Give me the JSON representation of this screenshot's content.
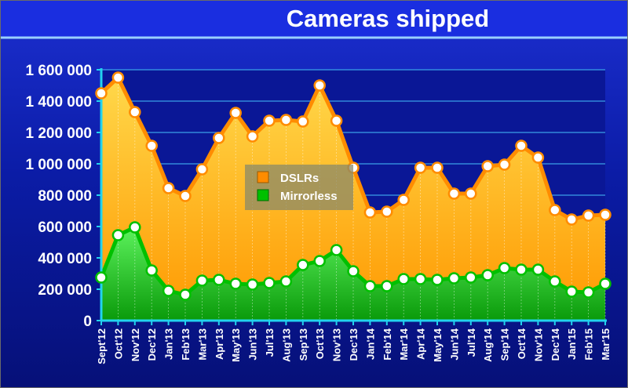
{
  "chart_data": {
    "type": "area",
    "title": "Cameras shipped",
    "xlabel": "",
    "ylabel": "",
    "ylim": [
      0,
      1600000
    ],
    "yticks": [
      0,
      200000,
      400000,
      600000,
      800000,
      1000000,
      1200000,
      1400000,
      1600000
    ],
    "ytick_labels": [
      "0",
      "200 000",
      "400 000",
      "600 000",
      "800 000",
      "1 000 000",
      "1 200 000",
      "1 400 000",
      "1 600 000"
    ],
    "grid": true,
    "legend_position": "center",
    "categories": [
      "Sept'12",
      "Oct'12",
      "Nov'12",
      "Dec'12",
      "Jan'13",
      "Feb'13",
      "Mar'13",
      "Apr'13",
      "May'13",
      "Jun'13",
      "Jul'13",
      "Aug'13",
      "Sep'13",
      "Oct'13",
      "Nov'13",
      "Dec'13",
      "Jan'14",
      "Feb'14",
      "Mar'14",
      "Apr'14",
      "May'14",
      "Jun'14",
      "Jul'14",
      "Aug'14",
      "Sep'14",
      "Oct'14",
      "Nov'14",
      "Dec'14",
      "Jan'15",
      "Feb'15",
      "Mar'15"
    ],
    "series": [
      {
        "name": "DSLRs",
        "color": "#ff8c00",
        "fill_top": "#ffd84a",
        "fill_bottom": "#ff9800",
        "values": [
          1450000,
          1550000,
          1330000,
          1115000,
          845000,
          795000,
          965000,
          1165000,
          1325000,
          1175000,
          1275000,
          1280000,
          1270000,
          1500000,
          1275000,
          975000,
          690000,
          695000,
          770000,
          975000,
          975000,
          810000,
          810000,
          985000,
          995000,
          1115000,
          1040000,
          705000,
          645000,
          670000,
          675000
        ]
      },
      {
        "name": "Mirrorless",
        "color": "#00c000",
        "fill_top": "#5cf25c",
        "fill_bottom": "#0a9a0a",
        "values": [
          275000,
          545000,
          595000,
          320000,
          190000,
          165000,
          255000,
          260000,
          235000,
          230000,
          240000,
          250000,
          355000,
          380000,
          450000,
          315000,
          220000,
          220000,
          265000,
          265000,
          260000,
          270000,
          275000,
          290000,
          335000,
          325000,
          325000,
          250000,
          185000,
          180000,
          235000
        ]
      }
    ]
  }
}
